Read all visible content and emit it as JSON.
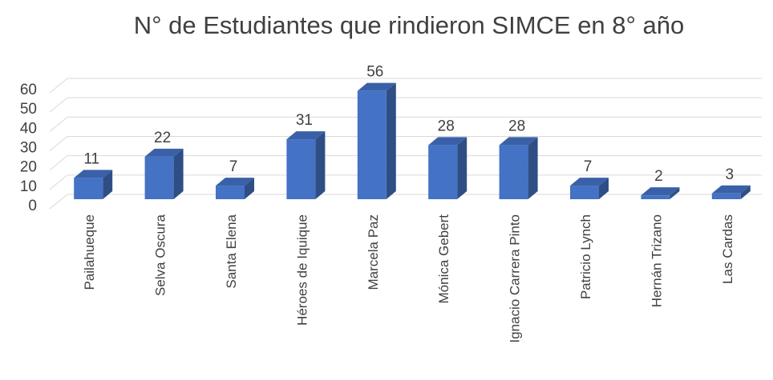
{
  "chart_data": {
    "type": "bar3d",
    "title": "N° de Estudiantes que rindieron SIMCE en 8° año",
    "categories": [
      "Pailahueque",
      "Selva Oscura",
      "Santa Elena",
      "Héroes de Iquique",
      "Marcela Paz",
      "Mónica Gebert",
      "Ignacio Carrera Pinto",
      "Patricio Lynch",
      "Hernán Trizano",
      "Las Cardas"
    ],
    "values": [
      11,
      22,
      7,
      31,
      56,
      28,
      28,
      7,
      2,
      3
    ],
    "color": "#4472c4",
    "ylim": [
      0,
      60
    ],
    "yticks": [
      0,
      10,
      20,
      30,
      40,
      50,
      60
    ],
    "grid": true
  }
}
